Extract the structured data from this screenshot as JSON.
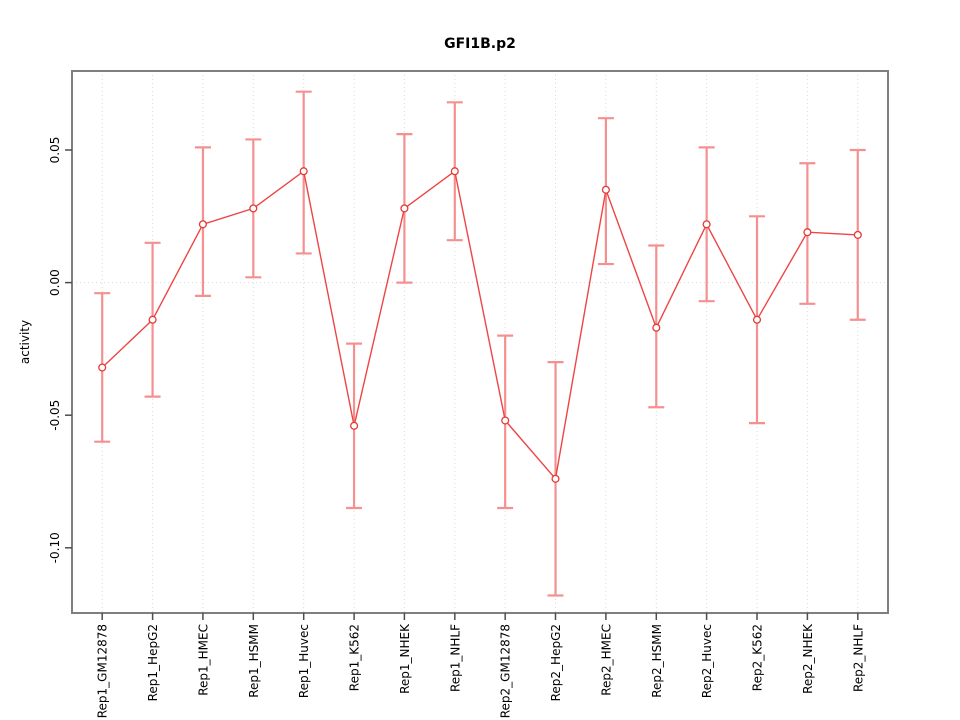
{
  "figure": {
    "background": "#ffffff"
  },
  "chart_data": {
    "type": "line",
    "title": "GFI1B.p2",
    "xlabel": "",
    "ylabel": "activity",
    "categories": [
      "Rep1_GM12878",
      "Rep1_HepG2",
      "Rep1_HMEC",
      "Rep1_HSMM",
      "Rep1_Huvec",
      "Rep1_K562",
      "Rep1_NHEK",
      "Rep1_NHLF",
      "Rep2_GM12878",
      "Rep2_HepG2",
      "Rep2_HMEC",
      "Rep2_HSMM",
      "Rep2_Huvec",
      "Rep2_K562",
      "Rep2_NHEK",
      "Rep2_NHLF"
    ],
    "series": [
      {
        "name": "activity",
        "values": [
          -0.032,
          -0.014,
          0.022,
          0.028,
          0.042,
          -0.054,
          0.028,
          0.042,
          -0.052,
          -0.074,
          0.035,
          -0.017,
          0.022,
          -0.014,
          0.019,
          0.018
        ],
        "ci_upper": [
          -0.004,
          0.015,
          0.051,
          0.054,
          0.072,
          -0.023,
          0.056,
          0.068,
          -0.02,
          -0.03,
          0.062,
          0.014,
          0.051,
          0.025,
          0.045,
          0.05
        ],
        "ci_lower": [
          -0.06,
          -0.043,
          -0.005,
          0.002,
          0.011,
          -0.085,
          0.0,
          0.016,
          -0.085,
          -0.118,
          0.007,
          -0.047,
          -0.007,
          -0.053,
          -0.008,
          -0.014
        ]
      }
    ],
    "yticks": [
      0.05,
      0.0,
      -0.05,
      -0.1
    ],
    "ytick_labels": [
      "0.05",
      "0.00",
      "-0.05",
      "-0.10"
    ],
    "ylim": [
      -0.1246,
      0.0798
    ],
    "grid": {
      "vertical_at_each_x": true,
      "horizontal_at_zero": true,
      "style": "dotted"
    },
    "legend": "none",
    "marker": "open-circle",
    "colors": {
      "line": "#ee4545",
      "marker": "#e53935",
      "error_bar": "#f59090",
      "grid": "#d9d9d9",
      "box": "#7f7f7f",
      "tick": "#4d4d4d",
      "text": "#000000"
    }
  }
}
